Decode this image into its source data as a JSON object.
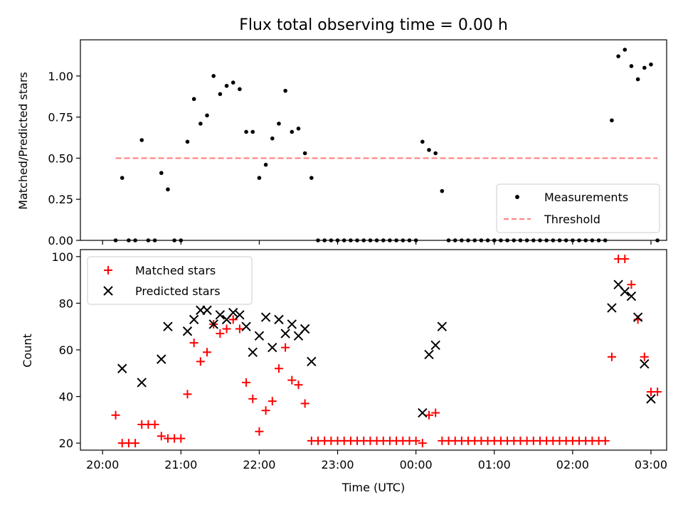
{
  "chart_data": [
    {
      "type": "scatter",
      "title": "Flux total observing time = 0.00 h",
      "ylabel": "Matched/Predicted stars",
      "xlabel": "",
      "ylim": [
        0,
        1.22
      ],
      "x_unit": "minutes after 20:00 UTC",
      "xlim": [
        -17,
        432
      ],
      "yticks": [
        {
          "v": 0.0,
          "label": "0.00"
        },
        {
          "v": 0.25,
          "label": "0.25"
        },
        {
          "v": 0.5,
          "label": "0.50"
        },
        {
          "v": 0.75,
          "label": "0.75"
        },
        {
          "v": 1.0,
          "label": "1.00"
        }
      ],
      "legend_position": "lower right",
      "series": [
        {
          "name": "Measurements",
          "color": "#000000",
          "marker": "dot",
          "x": [
            10,
            15,
            20,
            25,
            30,
            35,
            40,
            45,
            50,
            55,
            60,
            65,
            70,
            75,
            80,
            85,
            90,
            95,
            100,
            105,
            110,
            115,
            120,
            125,
            130,
            135,
            140,
            145,
            150,
            155,
            160,
            165,
            170,
            175,
            180,
            185,
            190,
            195,
            200,
            205,
            210,
            215,
            220,
            225,
            230,
            235,
            240,
            245,
            250,
            255,
            260,
            265,
            270,
            275,
            280,
            285,
            290,
            295,
            300,
            305,
            310,
            315,
            320,
            325,
            330,
            335,
            340,
            345,
            350,
            355,
            360,
            365,
            370,
            375,
            380,
            385,
            390,
            395,
            400,
            405,
            410,
            415,
            420,
            425
          ],
          "y": [
            0,
            0.38,
            0,
            0,
            0.61,
            0,
            0,
            0.41,
            0.31,
            0,
            0,
            0.6,
            0.86,
            0.71,
            0.76,
            1.0,
            0.89,
            0.94,
            0.96,
            0.92,
            0.66,
            0.66,
            0.38,
            0.46,
            0.62,
            0.71,
            0.91,
            0.66,
            0.68,
            0.53,
            0.38,
            0,
            0,
            0,
            0,
            0,
            0,
            0,
            0,
            0,
            0,
            0,
            0,
            0,
            0,
            0,
            0,
            0.6,
            0.55,
            0.53,
            0.3,
            0,
            0,
            0,
            0,
            0,
            0,
            0,
            0,
            0,
            0,
            0,
            0,
            0,
            0,
            0,
            0,
            0,
            0,
            0,
            0,
            0,
            0,
            0,
            0,
            0,
            0.73,
            1.12,
            1.16,
            1.06,
            0.98,
            1.05,
            1.07,
            0
          ]
        },
        {
          "name": "Threshold",
          "color": "#ff8080",
          "style": "dashed",
          "x": [
            10,
            425
          ],
          "y": [
            0.5,
            0.5
          ]
        }
      ]
    },
    {
      "type": "scatter",
      "title": "",
      "ylabel": "Count",
      "xlabel": "Time (UTC)",
      "ylim": [
        17,
        103
      ],
      "x_unit": "minutes after 20:00 UTC",
      "xlim": [
        -17,
        432
      ],
      "yticks": [
        {
          "v": 20,
          "label": "20"
        },
        {
          "v": 40,
          "label": "40"
        },
        {
          "v": 60,
          "label": "60"
        },
        {
          "v": 80,
          "label": "80"
        },
        {
          "v": 100,
          "label": "100"
        }
      ],
      "xticks": [
        {
          "v": 0,
          "label": "20:00"
        },
        {
          "v": 60,
          "label": "21:00"
        },
        {
          "v": 120,
          "label": "22:00"
        },
        {
          "v": 180,
          "label": "23:00"
        },
        {
          "v": 240,
          "label": "00:00"
        },
        {
          "v": 300,
          "label": "01:00"
        },
        {
          "v": 360,
          "label": "02:00"
        },
        {
          "v": 420,
          "label": "03:00"
        }
      ],
      "legend_position": "upper left",
      "series": [
        {
          "name": "Matched stars",
          "color": "#ff0000",
          "marker": "plus",
          "x": [
            10,
            15,
            20,
            25,
            30,
            35,
            40,
            45,
            50,
            55,
            60,
            65,
            70,
            75,
            80,
            85,
            90,
            95,
            100,
            105,
            110,
            115,
            120,
            125,
            130,
            135,
            140,
            145,
            150,
            155,
            160,
            165,
            170,
            175,
            180,
            185,
            190,
            195,
            200,
            205,
            210,
            215,
            220,
            225,
            230,
            235,
            240,
            245,
            250,
            255,
            260,
            265,
            270,
            275,
            280,
            285,
            290,
            295,
            300,
            305,
            310,
            315,
            320,
            325,
            330,
            335,
            340,
            345,
            350,
            355,
            360,
            365,
            370,
            375,
            380,
            385,
            390,
            395,
            400,
            405,
            410,
            415,
            420,
            425
          ],
          "y": [
            32,
            20,
            20,
            20,
            28,
            28,
            28,
            23,
            22,
            22,
            22,
            41,
            63,
            55,
            59,
            71,
            67,
            69,
            73,
            69,
            46,
            39,
            25,
            34,
            38,
            52,
            61,
            47,
            45,
            37,
            21,
            21,
            21,
            21,
            21,
            21,
            21,
            21,
            21,
            21,
            21,
            21,
            21,
            21,
            21,
            21,
            21,
            20,
            32,
            33,
            21,
            21,
            21,
            21,
            21,
            21,
            21,
            21,
            21,
            21,
            21,
            21,
            21,
            21,
            21,
            21,
            21,
            21,
            21,
            21,
            21,
            21,
            21,
            21,
            21,
            21,
            57,
            99,
            99,
            88,
            73,
            57,
            42,
            42
          ]
        },
        {
          "name": "Predicted stars",
          "color": "#000000",
          "marker": "x",
          "x": [
            15,
            30,
            45,
            50,
            65,
            70,
            75,
            80,
            85,
            90,
            95,
            100,
            105,
            110,
            115,
            120,
            125,
            130,
            135,
            140,
            145,
            150,
            155,
            160,
            245,
            250,
            255,
            260,
            390,
            395,
            400,
            405,
            410,
            415,
            420
          ],
          "y": [
            52,
            46,
            56,
            70,
            68,
            73,
            77,
            77,
            71,
            75,
            73,
            76,
            75,
            70,
            59,
            66,
            74,
            61,
            73,
            67,
            71,
            66,
            69,
            55,
            33,
            58,
            62,
            70,
            78,
            88,
            85,
            83,
            74,
            54,
            39
          ]
        }
      ]
    }
  ]
}
